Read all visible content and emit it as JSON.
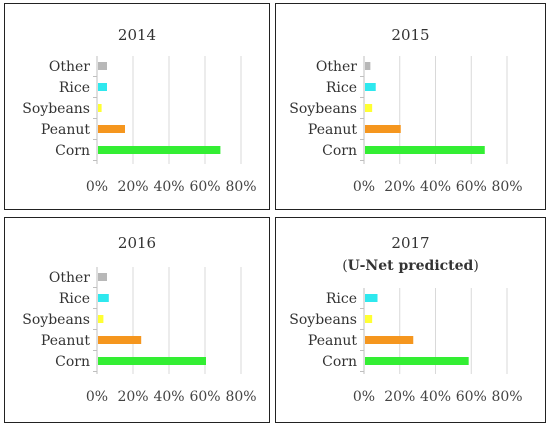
{
  "chart_data": [
    {
      "type": "bar",
      "orientation": "horizontal",
      "title": "2014",
      "categories": [
        "Other",
        "Rice",
        "Soybeans",
        "Peanut",
        "Corn"
      ],
      "values": [
        5,
        5,
        2,
        15,
        68
      ],
      "colors": [
        "#b8b8b8",
        "#2ee8ee",
        "#ffff33",
        "#f5961e",
        "#33ee33"
      ],
      "xlim": [
        0,
        80
      ],
      "xticks": [
        "0%",
        "20%",
        "40%",
        "60%",
        "80%"
      ],
      "grid": true
    },
    {
      "type": "bar",
      "orientation": "horizontal",
      "title": "2015",
      "categories": [
        "Other",
        "Rice",
        "Soybeans",
        "Peanut",
        "Corn"
      ],
      "values": [
        3,
        6,
        4,
        20,
        67
      ],
      "colors": [
        "#b8b8b8",
        "#2ee8ee",
        "#ffff33",
        "#f5961e",
        "#33ee33"
      ],
      "xlim": [
        0,
        80
      ],
      "xticks": [
        "0%",
        "20%",
        "40%",
        "60%",
        "80%"
      ],
      "grid": true
    },
    {
      "type": "bar",
      "orientation": "horizontal",
      "title": "2016",
      "categories": [
        "Other",
        "Rice",
        "Soybeans",
        "Peanut",
        "Corn"
      ],
      "values": [
        5,
        6,
        3,
        24,
        60
      ],
      "colors": [
        "#b8b8b8",
        "#2ee8ee",
        "#ffff33",
        "#f5961e",
        "#33ee33"
      ],
      "xlim": [
        0,
        80
      ],
      "xticks": [
        "0%",
        "20%",
        "40%",
        "60%",
        "80%"
      ],
      "grid": true
    },
    {
      "type": "bar",
      "orientation": "horizontal",
      "title": "2017",
      "subtitle_pre": "(",
      "subtitle_bold": "U-Net predicted",
      "subtitle_post": ")",
      "categories": [
        "Rice",
        "Soybeans",
        "Peanut",
        "Corn"
      ],
      "values": [
        7,
        4,
        27,
        58
      ],
      "colors": [
        "#2ee8ee",
        "#ffff33",
        "#f5961e",
        "#33ee33"
      ],
      "xlim": [
        0,
        80
      ],
      "xticks": [
        "0%",
        "20%",
        "40%",
        "60%",
        "80%"
      ],
      "grid": true
    }
  ]
}
